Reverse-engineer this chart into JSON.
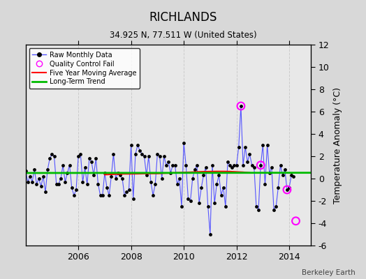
{
  "title": "RICHLANDS",
  "subtitle": "34.925 N, 77.511 W (United States)",
  "ylabel_right": "Temperature Anomaly (°C)",
  "watermark": "Berkeley Earth",
  "xlim": [
    2004.0,
    2014.83
  ],
  "ylim": [
    -6,
    12
  ],
  "yticks": [
    -6,
    -4,
    -2,
    0,
    2,
    4,
    6,
    8,
    10,
    12
  ],
  "xticks": [
    2006,
    2008,
    2010,
    2012,
    2014
  ],
  "background_color": "#d8d8d8",
  "plot_bg_color": "#e8e8e8",
  "raw_line_color": "#5555ff",
  "raw_marker_color": "#000000",
  "ma_color": "#ff0000",
  "trend_color": "#00bb00",
  "qc_color": "#ff00ff",
  "raw_data": [
    [
      2004.0,
      0.7
    ],
    [
      2004.083,
      -0.3
    ],
    [
      2004.167,
      0.2
    ],
    [
      2004.25,
      -0.3
    ],
    [
      2004.333,
      0.8
    ],
    [
      2004.417,
      -0.5
    ],
    [
      2004.5,
      0.0
    ],
    [
      2004.583,
      -0.7
    ],
    [
      2004.667,
      0.2
    ],
    [
      2004.75,
      -1.2
    ],
    [
      2004.833,
      0.8
    ],
    [
      2004.917,
      1.8
    ],
    [
      2005.0,
      2.2
    ],
    [
      2005.083,
      2.0
    ],
    [
      2005.167,
      -0.5
    ],
    [
      2005.25,
      -0.5
    ],
    [
      2005.333,
      0.0
    ],
    [
      2005.417,
      1.2
    ],
    [
      2005.5,
      -0.3
    ],
    [
      2005.583,
      0.5
    ],
    [
      2005.667,
      1.2
    ],
    [
      2005.75,
      -0.8
    ],
    [
      2005.833,
      -1.5
    ],
    [
      2005.917,
      -1.0
    ],
    [
      2006.0,
      2.0
    ],
    [
      2006.083,
      2.2
    ],
    [
      2006.167,
      -0.3
    ],
    [
      2006.25,
      1.0
    ],
    [
      2006.333,
      -0.5
    ],
    [
      2006.417,
      1.8
    ],
    [
      2006.5,
      1.5
    ],
    [
      2006.583,
      0.3
    ],
    [
      2006.667,
      1.8
    ],
    [
      2006.75,
      -0.5
    ],
    [
      2006.833,
      -1.5
    ],
    [
      2006.917,
      -1.5
    ],
    [
      2007.0,
      0.5
    ],
    [
      2007.083,
      -0.8
    ],
    [
      2007.167,
      -1.5
    ],
    [
      2007.25,
      0.2
    ],
    [
      2007.333,
      2.2
    ],
    [
      2007.417,
      0.0
    ],
    [
      2007.5,
      0.5
    ],
    [
      2007.583,
      0.3
    ],
    [
      2007.667,
      0.0
    ],
    [
      2007.75,
      -1.5
    ],
    [
      2007.833,
      -1.2
    ],
    [
      2007.917,
      -1.0
    ],
    [
      2008.0,
      3.0
    ],
    [
      2008.083,
      -1.8
    ],
    [
      2008.167,
      2.2
    ],
    [
      2008.25,
      3.0
    ],
    [
      2008.333,
      2.5
    ],
    [
      2008.417,
      2.2
    ],
    [
      2008.5,
      2.0
    ],
    [
      2008.583,
      0.3
    ],
    [
      2008.667,
      2.0
    ],
    [
      2008.75,
      -0.3
    ],
    [
      2008.833,
      -1.5
    ],
    [
      2008.917,
      -0.5
    ],
    [
      2009.0,
      2.2
    ],
    [
      2009.083,
      2.0
    ],
    [
      2009.167,
      0.0
    ],
    [
      2009.25,
      2.0
    ],
    [
      2009.333,
      1.2
    ],
    [
      2009.417,
      1.5
    ],
    [
      2009.5,
      0.5
    ],
    [
      2009.583,
      1.2
    ],
    [
      2009.667,
      1.2
    ],
    [
      2009.75,
      -0.5
    ],
    [
      2009.833,
      0.0
    ],
    [
      2009.917,
      -2.5
    ],
    [
      2010.0,
      3.2
    ],
    [
      2010.083,
      1.2
    ],
    [
      2010.167,
      -1.8
    ],
    [
      2010.25,
      -2.0
    ],
    [
      2010.333,
      0.0
    ],
    [
      2010.417,
      0.8
    ],
    [
      2010.5,
      1.2
    ],
    [
      2010.583,
      -2.2
    ],
    [
      2010.667,
      -0.8
    ],
    [
      2010.75,
      0.3
    ],
    [
      2010.833,
      1.0
    ],
    [
      2010.917,
      -2.5
    ],
    [
      2011.0,
      -5.0
    ],
    [
      2011.083,
      1.2
    ],
    [
      2011.167,
      -2.2
    ],
    [
      2011.25,
      -0.5
    ],
    [
      2011.333,
      0.3
    ],
    [
      2011.417,
      -1.5
    ],
    [
      2011.5,
      -0.8
    ],
    [
      2011.583,
      -2.5
    ],
    [
      2011.667,
      1.5
    ],
    [
      2011.75,
      1.2
    ],
    [
      2011.833,
      1.0
    ],
    [
      2011.917,
      1.2
    ],
    [
      2012.0,
      1.2
    ],
    [
      2012.083,
      2.8
    ],
    [
      2012.167,
      6.5
    ],
    [
      2012.25,
      1.2
    ],
    [
      2012.333,
      2.8
    ],
    [
      2012.417,
      1.5
    ],
    [
      2012.5,
      2.2
    ],
    [
      2012.583,
      1.2
    ],
    [
      2012.667,
      1.0
    ],
    [
      2012.75,
      -2.5
    ],
    [
      2012.833,
      -2.8
    ],
    [
      2012.917,
      1.2
    ],
    [
      2013.0,
      3.0
    ],
    [
      2013.083,
      -0.5
    ],
    [
      2013.167,
      3.0
    ],
    [
      2013.25,
      0.5
    ],
    [
      2013.333,
      1.0
    ],
    [
      2013.417,
      -2.8
    ],
    [
      2013.5,
      -2.5
    ],
    [
      2013.583,
      -0.8
    ],
    [
      2013.667,
      1.2
    ],
    [
      2013.75,
      0.3
    ],
    [
      2013.833,
      0.8
    ],
    [
      2013.917,
      -1.0
    ],
    [
      2014.0,
      -0.8
    ],
    [
      2014.083,
      0.3
    ],
    [
      2014.167,
      0.2
    ]
  ],
  "ma_data": [
    [
      2007.0,
      0.35
    ],
    [
      2007.25,
      0.38
    ],
    [
      2007.5,
      0.4
    ],
    [
      2007.75,
      0.42
    ],
    [
      2008.0,
      0.42
    ],
    [
      2008.25,
      0.43
    ],
    [
      2008.5,
      0.44
    ],
    [
      2008.75,
      0.45
    ],
    [
      2009.0,
      0.45
    ],
    [
      2009.25,
      0.48
    ],
    [
      2009.5,
      0.5
    ],
    [
      2009.75,
      0.52
    ],
    [
      2010.0,
      0.55
    ],
    [
      2010.25,
      0.57
    ],
    [
      2010.5,
      0.6
    ],
    [
      2010.75,
      0.62
    ],
    [
      2011.0,
      0.63
    ],
    [
      2011.25,
      0.64
    ],
    [
      2011.5,
      0.64
    ],
    [
      2011.75,
      0.63
    ],
    [
      2012.0,
      0.6
    ],
    [
      2012.25,
      0.57
    ],
    [
      2012.5,
      0.52
    ]
  ],
  "trend_data": [
    [
      2004.0,
      0.5
    ],
    [
      2014.83,
      0.52
    ]
  ],
  "qc_points": [
    [
      2012.167,
      6.5
    ],
    [
      2012.917,
      1.2
    ],
    [
      2013.917,
      -1.0
    ],
    [
      2014.25,
      -3.8
    ]
  ]
}
